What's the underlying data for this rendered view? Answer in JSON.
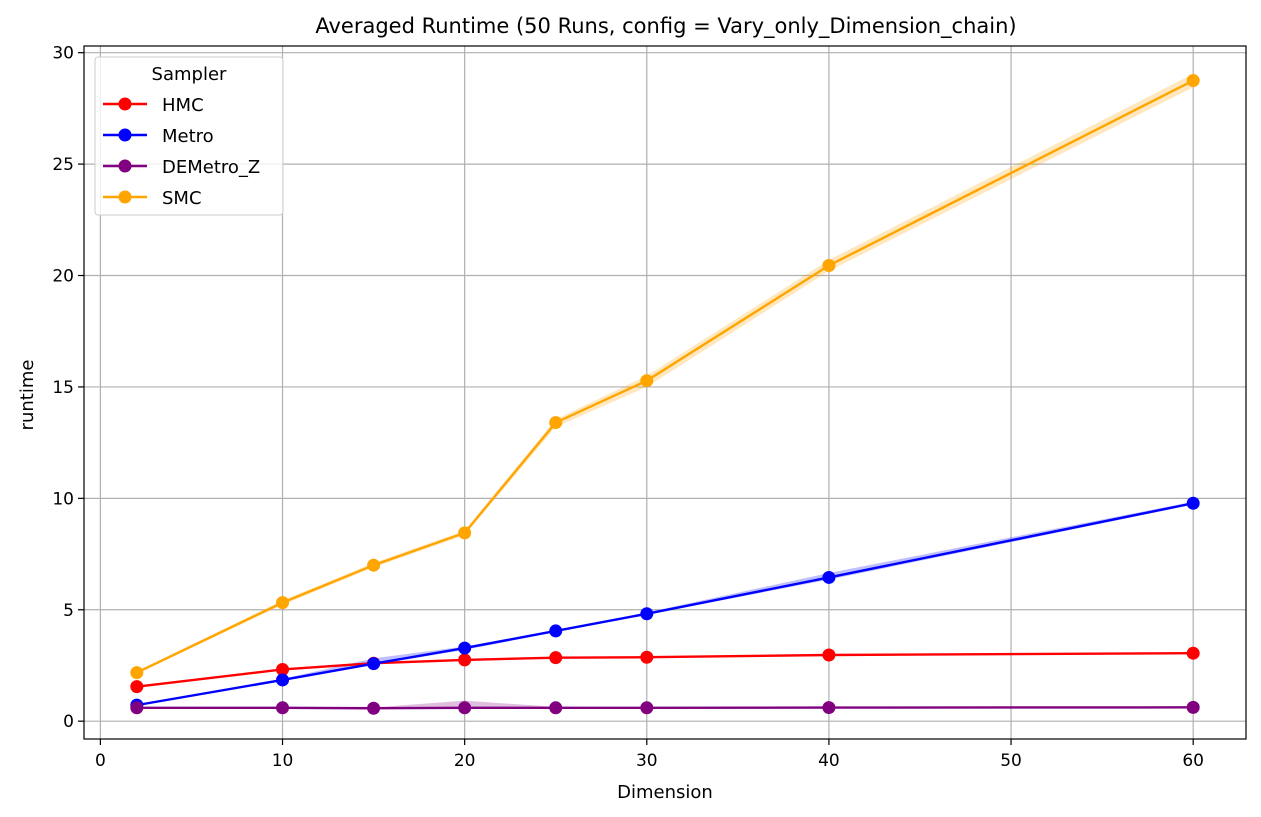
{
  "chart_data": {
    "type": "line",
    "title": "Averaged Runtime (50 Runs, config = Vary_only_Dimension_chain)",
    "xlabel": "Dimension",
    "ylabel": "runtime",
    "x": [
      2,
      10,
      15,
      20,
      25,
      30,
      40,
      60
    ],
    "xlim": [
      -0.9,
      62.9
    ],
    "ylim": [
      -0.8,
      30.3
    ],
    "xticks": [
      0,
      10,
      20,
      30,
      40,
      50,
      60
    ],
    "yticks": [
      0,
      5,
      10,
      15,
      20,
      25,
      30
    ],
    "grid": true,
    "legend": {
      "title": "Sampler",
      "position": "top-left"
    },
    "series": [
      {
        "name": "HMC",
        "color": "#ff0000",
        "values": [
          1.55,
          2.32,
          2.6,
          2.75,
          2.85,
          2.87,
          2.97,
          3.05
        ],
        "band_low": [
          1.5,
          2.28,
          2.55,
          2.7,
          2.82,
          2.84,
          2.94,
          3.02
        ],
        "band_high": [
          1.6,
          2.36,
          2.66,
          2.8,
          2.88,
          2.9,
          3.0,
          3.08
        ]
      },
      {
        "name": "Metro",
        "color": "#0000ff",
        "values": [
          0.72,
          1.85,
          2.58,
          3.28,
          4.05,
          4.82,
          6.45,
          9.78
        ],
        "band_low": [
          0.68,
          1.8,
          2.52,
          3.2,
          4.0,
          4.78,
          6.35,
          9.72
        ],
        "band_high": [
          0.76,
          1.9,
          2.82,
          3.35,
          4.1,
          4.88,
          6.65,
          9.85
        ]
      },
      {
        "name": "DEMetro_Z",
        "color": "#800080",
        "values": [
          0.6,
          0.6,
          0.58,
          0.6,
          0.6,
          0.6,
          0.61,
          0.62
        ],
        "band_low": [
          0.57,
          0.57,
          0.55,
          0.55,
          0.57,
          0.58,
          0.59,
          0.6
        ],
        "band_high": [
          0.63,
          0.63,
          0.62,
          0.92,
          0.64,
          0.63,
          0.63,
          0.64
        ]
      },
      {
        "name": "SMC",
        "color": "#ffa500",
        "values": [
          2.18,
          5.32,
          7.0,
          8.45,
          13.4,
          15.28,
          20.45,
          28.75
        ],
        "band_low": [
          2.12,
          5.22,
          6.9,
          8.35,
          13.2,
          15.0,
          20.2,
          28.45
        ],
        "band_high": [
          2.24,
          5.42,
          7.1,
          8.55,
          13.55,
          15.5,
          20.7,
          29.05
        ]
      }
    ]
  }
}
